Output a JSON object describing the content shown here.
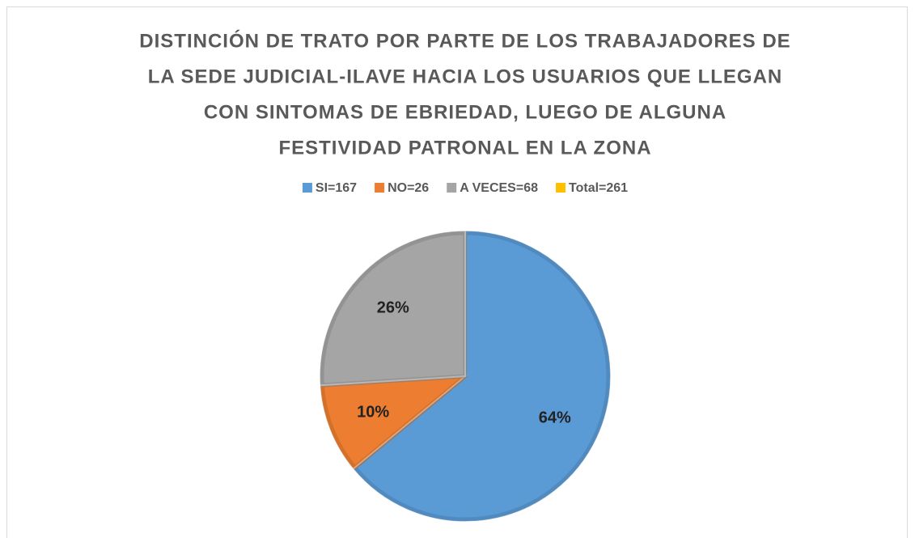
{
  "chart_data": {
    "type": "pie",
    "title": [
      "DISTINCIÓN DE TRATO POR PARTE DE LOS TRABAJADORES DE",
      "LA SEDE JUDICIAL-ILAVE HACIA LOS USUARIOS QUE LLEGAN",
      "CON SINTOMAS DE EBRIEDAD, LUEGO DE ALGUNA",
      "FESTIVIDAD PATRONAL EN LA ZONA"
    ],
    "categories": [
      "SI=167",
      "NO=26",
      "A VECES=68",
      "Total=261"
    ],
    "values": [
      64,
      10,
      26,
      null
    ],
    "value_labels": [
      "64%",
      "10%",
      "26%",
      null
    ],
    "colors": [
      "#5b9bd5",
      "#ed7d31",
      "#a5a5a5",
      "#ffc000"
    ],
    "legend": "top"
  }
}
